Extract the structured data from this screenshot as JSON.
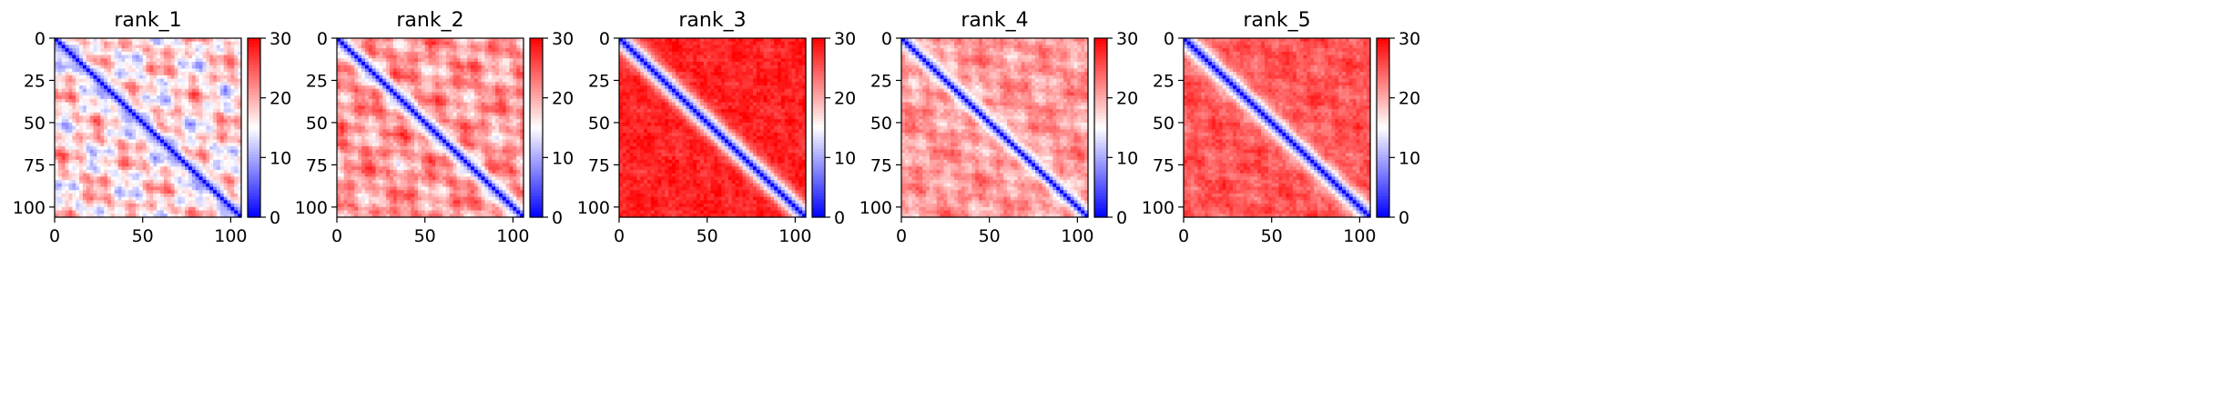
{
  "chart_data": [
    {
      "type": "heatmap",
      "title": "rank_1",
      "matrix_size": 106,
      "x_ticks": [
        0,
        50,
        100
      ],
      "y_ticks": [
        0,
        25,
        50,
        75,
        100
      ],
      "xlim": [
        0,
        106
      ],
      "ylim": [
        106,
        0
      ],
      "colorbar": {
        "min": 0,
        "max": 30,
        "ticks": [
          0,
          10,
          20,
          30
        ]
      },
      "colormap": [
        "#0000ff",
        "#ffffff",
        "#ff0000"
      ],
      "pattern": {
        "background": 17,
        "offdiag_amp": 8,
        "band_width": 4
      }
    },
    {
      "type": "heatmap",
      "title": "rank_2",
      "matrix_size": 106,
      "x_ticks": [
        0,
        50,
        100
      ],
      "y_ticks": [
        0,
        25,
        50,
        75,
        100
      ],
      "xlim": [
        0,
        106
      ],
      "ylim": [
        106,
        0
      ],
      "colorbar": {
        "min": 0,
        "max": 30,
        "ticks": [
          0,
          10,
          20,
          30
        ]
      },
      "colormap": [
        "#0000ff",
        "#ffffff",
        "#ff0000"
      ],
      "pattern": {
        "background": 21,
        "offdiag_amp": 6,
        "band_width": 4
      }
    },
    {
      "type": "heatmap",
      "title": "rank_3",
      "matrix_size": 106,
      "x_ticks": [
        0,
        50,
        100
      ],
      "y_ticks": [
        0,
        25,
        50,
        75,
        100
      ],
      "xlim": [
        0,
        106
      ],
      "ylim": [
        106,
        0
      ],
      "colorbar": {
        "min": 0,
        "max": 30,
        "ticks": [
          0,
          10,
          20,
          30
        ]
      },
      "colormap": [
        "#0000ff",
        "#ffffff",
        "#ff0000"
      ],
      "pattern": {
        "background": 28,
        "offdiag_amp": 1.5,
        "band_width": 5
      }
    },
    {
      "type": "heatmap",
      "title": "rank_4",
      "matrix_size": 106,
      "x_ticks": [
        0,
        50,
        100
      ],
      "y_ticks": [
        0,
        25,
        50,
        75,
        100
      ],
      "xlim": [
        0,
        106
      ],
      "ylim": [
        106,
        0
      ],
      "colorbar": {
        "min": 0,
        "max": 30,
        "ticks": [
          0,
          10,
          20,
          30
        ]
      },
      "colormap": [
        "#0000ff",
        "#ffffff",
        "#ff0000"
      ],
      "pattern": {
        "background": 21,
        "offdiag_amp": 4,
        "band_width": 4
      }
    },
    {
      "type": "heatmap",
      "title": "rank_5",
      "matrix_size": 106,
      "x_ticks": [
        0,
        50,
        100
      ],
      "y_ticks": [
        0,
        25,
        50,
        75,
        100
      ],
      "xlim": [
        0,
        106
      ],
      "ylim": [
        106,
        0
      ],
      "colorbar": {
        "min": 0,
        "max": 30,
        "ticks": [
          0,
          10,
          20,
          30
        ]
      },
      "colormap": [
        "#0000ff",
        "#ffffff",
        "#ff0000"
      ],
      "pattern": {
        "background": 25,
        "offdiag_amp": 2.5,
        "band_width": 5
      }
    }
  ]
}
